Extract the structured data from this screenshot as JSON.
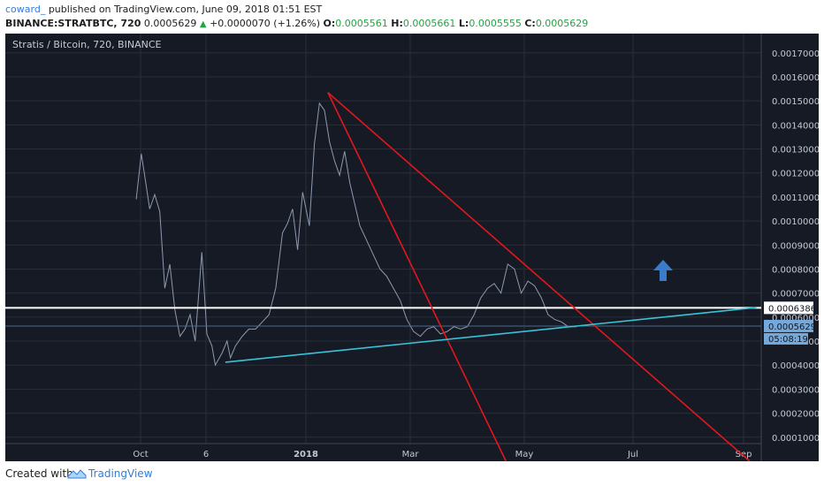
{
  "header": {
    "author": "coward_",
    "published_text": "published on TradingView.com, June 09, 2018 01:51 EST",
    "symbol": "BINANCE:STRATBTC, 720",
    "last": "0.0005629",
    "change_arrow": "▲",
    "change": "+0.0000070 (+1.26%)",
    "o_label": "O:",
    "o_value": "0.0005561",
    "h_label": "H:",
    "h_value": "0.0005661",
    "l_label": "L:",
    "l_value": "0.0005555",
    "c_label": "C:",
    "c_value": "0.0005629"
  },
  "chart_title": "Stratis / Bitcoin, 720, BINANCE",
  "footer": {
    "created_with": "Created with",
    "brand": "TradingView"
  },
  "colors": {
    "background": "#161a25",
    "grid": "#2a2e39",
    "price_line": "#8d9aaf",
    "trend_red": "#e3171c",
    "trend_cyan": "#38c3d9",
    "level_white": "#ffffff",
    "last_price_badge": "#74a9dc",
    "arrow_blue": "#3a7cc9",
    "axis_text": "#c6c9d3"
  },
  "chart_data": {
    "type": "line",
    "title": "Stratis / Bitcoin, 720, BINANCE",
    "xlabel": "",
    "ylabel": "",
    "grid": true,
    "x_ticks": [
      "Oct",
      "6",
      "2018",
      "Mar",
      "May",
      "Jul",
      "Sep"
    ],
    "y_ticks": [
      "0.0001000",
      "0.0002000",
      "0.0003000",
      "0.0004000",
      "0.0005000",
      "0.0006000",
      "0.0007000",
      "0.0008000",
      "0.0009000",
      "0.0010000",
      "0.0011000",
      "0.0012000",
      "0.0013000",
      "0.0014000",
      "0.0015000",
      "0.0016000",
      "0.0017000"
    ],
    "ylim": [
      0.0,
      0.00178
    ],
    "price_labels": {
      "level": "0.0006386",
      "tick_partial": "0.0006000",
      "last": "0.0005629",
      "countdown": "05:08:19"
    },
    "series": [
      {
        "x": [
          "2017-09-20",
          "2017-09-23",
          "2017-09-25",
          "2017-09-28",
          "2017-10-01",
          "2017-10-04",
          "2017-10-07",
          "2017-10-10",
          "2017-10-13",
          "2017-10-16",
          "2017-10-19",
          "2017-10-22",
          "2017-10-25",
          "2017-10-29",
          "2017-11-01",
          "2017-11-04",
          "2017-11-06",
          "2017-11-10",
          "2017-11-13",
          "2017-11-15",
          "2017-11-18",
          "2017-11-22",
          "2017-11-26",
          "2017-11-30",
          "2017-12-04",
          "2017-12-08",
          "2017-12-12",
          "2017-12-16",
          "2017-12-19",
          "2017-12-22",
          "2017-12-25",
          "2017-12-28",
          "2018-01-01",
          "2018-01-04",
          "2018-01-07",
          "2018-01-10",
          "2018-01-13",
          "2018-01-16",
          "2018-01-19",
          "2018-01-22",
          "2018-01-25",
          "2018-01-28",
          "2018-01-31",
          "2018-02-04",
          "2018-02-08",
          "2018-02-12",
          "2018-02-16",
          "2018-02-20",
          "2018-02-24",
          "2018-02-28",
          "2018-03-04",
          "2018-03-08",
          "2018-03-12",
          "2018-03-16",
          "2018-03-20",
          "2018-03-24",
          "2018-03-28",
          "2018-04-01",
          "2018-04-05",
          "2018-04-09",
          "2018-04-13",
          "2018-04-17",
          "2018-04-21",
          "2018-04-25",
          "2018-04-29",
          "2018-05-03",
          "2018-05-07",
          "2018-05-11",
          "2018-05-15",
          "2018-05-19",
          "2018-05-23",
          "2018-05-27",
          "2018-05-31",
          "2018-06-04",
          "2018-06-09"
        ],
        "y": [
          0.00109,
          0.00128,
          0.00119,
          0.00105,
          0.00111,
          0.00104,
          0.00072,
          0.00082,
          0.00063,
          0.00052,
          0.00055,
          0.00061,
          0.0005,
          0.00087,
          0.00053,
          0.00048,
          0.0004,
          0.00045,
          0.0005,
          0.00043,
          0.00048,
          0.00052,
          0.00055,
          0.00055,
          0.00058,
          0.00061,
          0.00072,
          0.00095,
          0.00099,
          0.00105,
          0.00088,
          0.00112,
          0.00098,
          0.00132,
          0.00149,
          0.00146,
          0.00133,
          0.00125,
          0.00119,
          0.00129,
          0.00116,
          0.00107,
          0.00098,
          0.00092,
          0.00086,
          0.0008,
          0.00077,
          0.00072,
          0.00067,
          0.00059,
          0.00054,
          0.00052,
          0.00055,
          0.00056,
          0.00053,
          0.00054,
          0.00056,
          0.00055,
          0.00056,
          0.00061,
          0.00068,
          0.00072,
          0.00074,
          0.0007,
          0.00082,
          0.0008,
          0.0007,
          0.00075,
          0.00073,
          0.00068,
          0.00061,
          0.00059,
          0.00058,
          0.00056,
          0.00056
        ]
      }
    ]
  }
}
